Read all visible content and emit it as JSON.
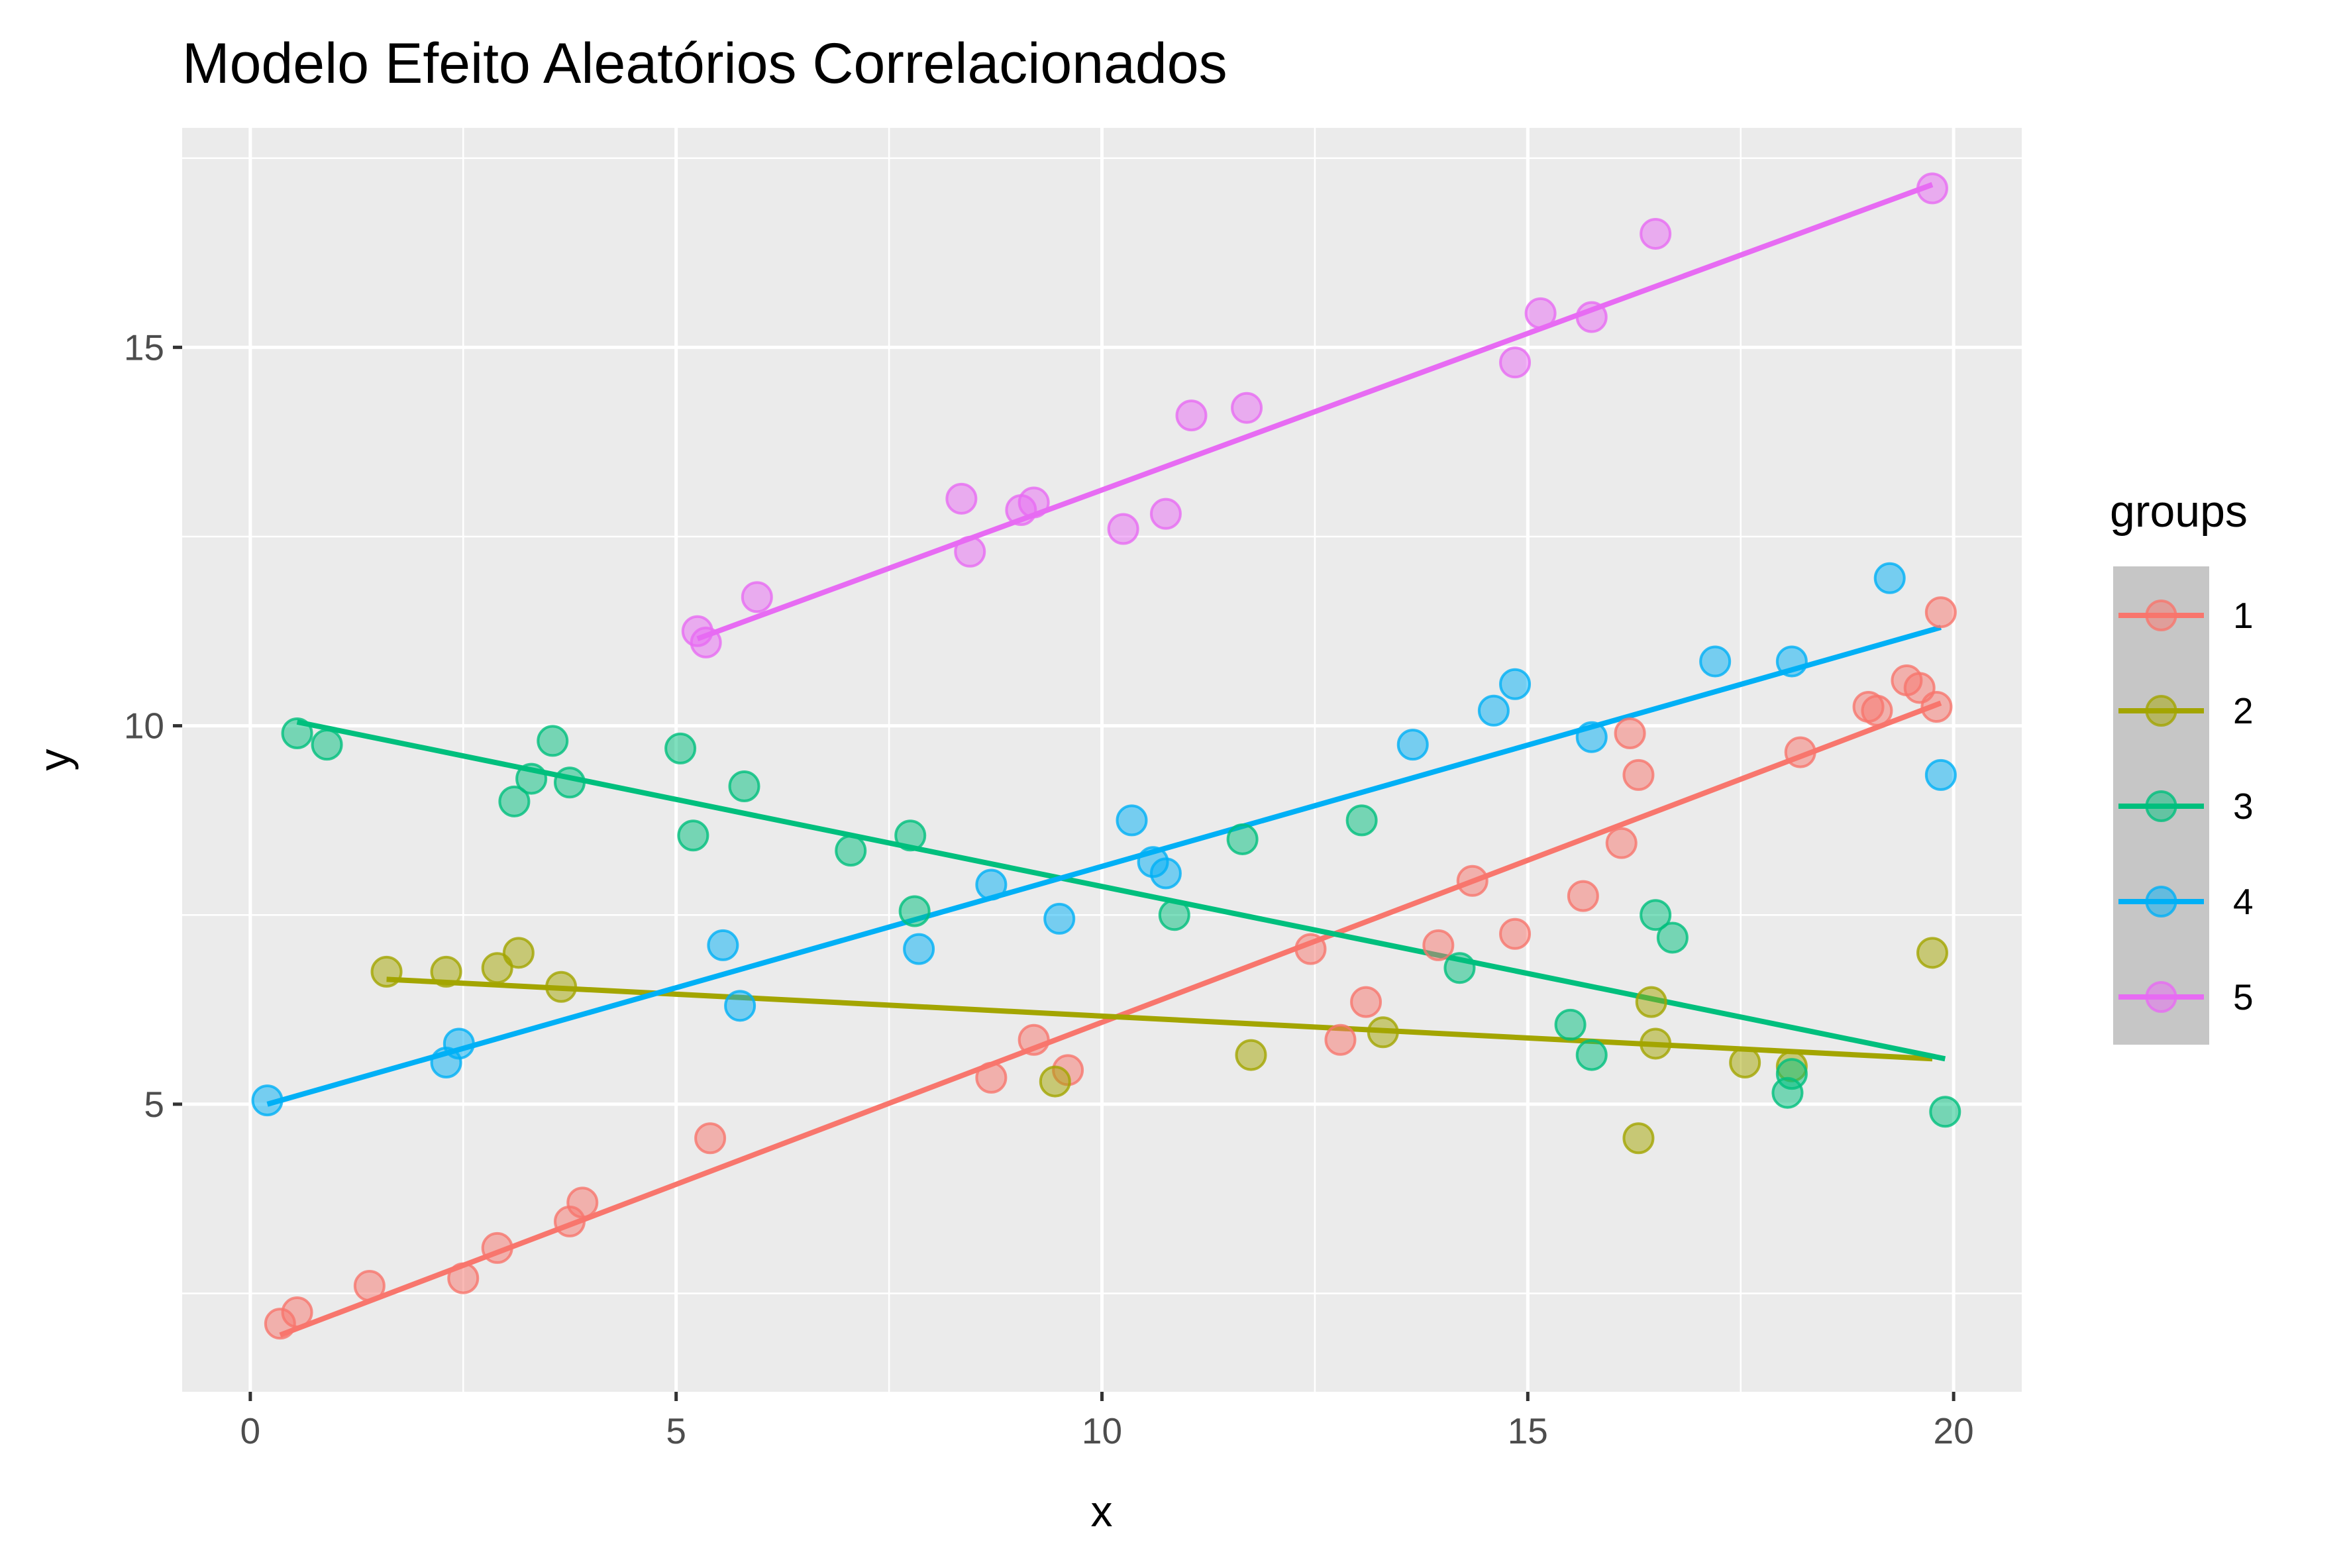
{
  "chart_data": {
    "type": "scatter",
    "title": "Modelo Efeito Aleatórios Correlacionados",
    "xlabel": "x",
    "ylabel": "y",
    "xlim": [
      -0.8,
      20.8
    ],
    "ylim": [
      1.2,
      17.9
    ],
    "x_ticks": [
      0,
      5,
      10,
      15,
      20
    ],
    "x_tick_labels": [
      "0",
      "5",
      "10",
      "15",
      "20"
    ],
    "y_ticks": [
      5,
      10,
      15
    ],
    "y_tick_labels": [
      "5",
      "10",
      "15"
    ],
    "grid": true,
    "legend": {
      "title": "groups",
      "position": "right"
    },
    "series": [
      {
        "name": "1",
        "color": "#F8766D",
        "points": [
          [
            0.35,
            2.1
          ],
          [
            0.55,
            2.25
          ],
          [
            1.4,
            2.6
          ],
          [
            2.5,
            2.7
          ],
          [
            2.9,
            3.1
          ],
          [
            3.75,
            3.45
          ],
          [
            3.9,
            3.7
          ],
          [
            5.4,
            4.55
          ],
          [
            8.7,
            5.35
          ],
          [
            9.2,
            5.85
          ],
          [
            9.6,
            5.45
          ],
          [
            12.45,
            7.05
          ],
          [
            12.8,
            5.85
          ],
          [
            13.1,
            6.35
          ],
          [
            13.95,
            7.1
          ],
          [
            14.35,
            7.95
          ],
          [
            14.85,
            7.25
          ],
          [
            15.65,
            7.75
          ],
          [
            16.1,
            8.45
          ],
          [
            16.2,
            9.9
          ],
          [
            16.3,
            9.35
          ],
          [
            18.2,
            9.65
          ],
          [
            19.0,
            10.25
          ],
          [
            19.1,
            10.2
          ],
          [
            19.45,
            10.6
          ],
          [
            19.6,
            10.5
          ],
          [
            19.8,
            10.25
          ],
          [
            19.85,
            11.5
          ]
        ],
        "fit": [
          [
            0.35,
            1.95
          ],
          [
            19.85,
            10.3
          ]
        ]
      },
      {
        "name": "2",
        "color": "#A3A500",
        "points": [
          [
            1.6,
            6.75
          ],
          [
            2.3,
            6.75
          ],
          [
            2.9,
            6.8
          ],
          [
            3.15,
            7.0
          ],
          [
            3.65,
            6.55
          ],
          [
            9.45,
            5.3
          ],
          [
            11.75,
            5.65
          ],
          [
            13.3,
            5.95
          ],
          [
            16.3,
            4.55
          ],
          [
            16.45,
            6.35
          ],
          [
            16.5,
            5.8
          ],
          [
            17.55,
            5.55
          ],
          [
            18.1,
            5.5
          ],
          [
            19.75,
            7.0
          ]
        ],
        "fit": [
          [
            1.6,
            6.65
          ],
          [
            19.75,
            5.6
          ]
        ]
      },
      {
        "name": "3",
        "color": "#00BF7D",
        "points": [
          [
            0.55,
            9.9
          ],
          [
            0.9,
            9.75
          ],
          [
            3.1,
            9.0
          ],
          [
            3.3,
            9.3
          ],
          [
            3.55,
            9.8
          ],
          [
            3.75,
            9.25
          ],
          [
            5.05,
            9.7
          ],
          [
            5.2,
            8.55
          ],
          [
            5.8,
            9.2
          ],
          [
            7.05,
            8.35
          ],
          [
            7.75,
            8.55
          ],
          [
            7.8,
            7.55
          ],
          [
            10.85,
            7.5
          ],
          [
            11.65,
            8.5
          ],
          [
            13.05,
            8.75
          ],
          [
            14.2,
            6.8
          ],
          [
            15.5,
            6.05
          ],
          [
            15.75,
            5.65
          ],
          [
            16.5,
            7.5
          ],
          [
            16.7,
            7.2
          ],
          [
            18.05,
            5.15
          ],
          [
            18.1,
            5.4
          ],
          [
            19.9,
            4.9
          ]
        ],
        "fit": [
          [
            0.55,
            10.05
          ],
          [
            19.9,
            5.6
          ]
        ]
      },
      {
        "name": "4",
        "color": "#00B0F6",
        "points": [
          [
            0.2,
            5.05
          ],
          [
            2.3,
            5.55
          ],
          [
            2.45,
            5.8
          ],
          [
            5.55,
            7.1
          ],
          [
            5.75,
            6.3
          ],
          [
            7.85,
            7.05
          ],
          [
            8.7,
            7.9
          ],
          [
            9.5,
            7.45
          ],
          [
            10.35,
            8.75
          ],
          [
            10.6,
            8.2
          ],
          [
            10.75,
            8.05
          ],
          [
            13.65,
            9.75
          ],
          [
            14.6,
            10.2
          ],
          [
            14.85,
            10.55
          ],
          [
            15.75,
            9.85
          ],
          [
            17.2,
            10.85
          ],
          [
            18.1,
            10.85
          ],
          [
            19.25,
            11.95
          ],
          [
            19.85,
            9.35
          ]
        ],
        "fit": [
          [
            0.2,
            5.0
          ],
          [
            19.85,
            11.3
          ]
        ]
      },
      {
        "name": "5",
        "color": "#E76BF3",
        "points": [
          [
            5.25,
            11.25
          ],
          [
            5.35,
            11.1
          ],
          [
            5.95,
            11.7
          ],
          [
            8.35,
            13.0
          ],
          [
            8.45,
            12.3
          ],
          [
            9.05,
            12.85
          ],
          [
            9.2,
            12.95
          ],
          [
            10.25,
            12.6
          ],
          [
            10.75,
            12.8
          ],
          [
            11.05,
            14.1
          ],
          [
            11.7,
            14.2
          ],
          [
            14.85,
            14.8
          ],
          [
            15.15,
            15.45
          ],
          [
            15.75,
            15.4
          ],
          [
            16.5,
            16.5
          ],
          [
            19.75,
            17.1
          ]
        ],
        "fit": [
          [
            5.25,
            11.15
          ],
          [
            19.75,
            17.15
          ]
        ]
      }
    ]
  }
}
